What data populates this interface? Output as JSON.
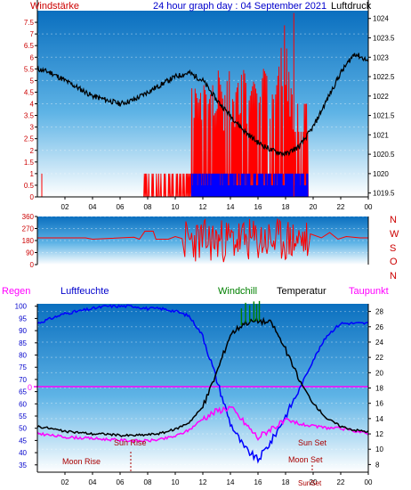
{
  "header": {
    "left_label": "Windstärke",
    "title": "24 hour graph day : 04 September 2021",
    "right_label": "Luftdruck"
  },
  "colors": {
    "wind": "#ff0000",
    "gust": "#0000ff",
    "pressure": "#000000",
    "humidity": "#0000ff",
    "windchill": "#008000",
    "temperature": "#000000",
    "dewpoint": "#ff00ff",
    "rain": "#ff00ff",
    "bg_top": "#0a6fbf",
    "bg_bottom": "#ffffff",
    "label_red": "#cc0000",
    "label_blue": "#0000cc"
  },
  "chart_data": [
    {
      "type": "line",
      "title": "24 hour graph day : 04 September 2021",
      "left_axis_label": "Windstärke",
      "right_axis_label": "Luftdruck",
      "x_ticks": [
        "02",
        "04",
        "06",
        "08",
        "10",
        "12",
        "14",
        "16",
        "18",
        "20",
        "22",
        "00"
      ],
      "left_ticks": [
        "0",
        "0.5",
        "1",
        "1.5",
        "2",
        "2.5",
        "3",
        "3.5",
        "4",
        "4.5",
        "5",
        "5.5",
        "6",
        "6.5",
        "7",
        "7.5"
      ],
      "right_ticks": [
        "1019.5",
        "1020",
        "1020.5",
        "1021",
        "1021.5",
        "1022",
        "1022.5",
        "1023",
        "1023.5",
        "1024"
      ],
      "ylim_left": [
        0,
        8
      ],
      "ylim_right": [
        1019.4,
        1024.2
      ],
      "grid": true,
      "series": [
        {
          "name": "Luftdruck",
          "axis": "right",
          "x": [
            0,
            1,
            2,
            3,
            4,
            5,
            6,
            7,
            8,
            9,
            10,
            11,
            12,
            13,
            14,
            15,
            16,
            17,
            18,
            19,
            20,
            21,
            22,
            23,
            24
          ],
          "values": [
            1022.7,
            1022.6,
            1022.4,
            1022.2,
            1022.0,
            1021.9,
            1021.8,
            1021.9,
            1022.1,
            1022.3,
            1022.5,
            1022.6,
            1022.4,
            1021.9,
            1021.5,
            1021.1,
            1020.8,
            1020.6,
            1020.5,
            1020.7,
            1021.2,
            1021.9,
            1022.6,
            1023.1,
            1022.9
          ]
        },
        {
          "name": "Windstärke",
          "axis": "left",
          "x": [
            11.0,
            11.3,
            11.7,
            12.0,
            12.4,
            12.8,
            13.1,
            13.5,
            13.9,
            14.2,
            14.6,
            15.0,
            15.3,
            15.7,
            16.1,
            16.4,
            16.8,
            17.2,
            17.5,
            17.9,
            18.3,
            18.6,
            19.0
          ],
          "values": [
            4,
            5,
            4,
            5,
            4,
            5,
            5.5,
            4,
            5.5,
            4,
            5,
            5.5,
            4,
            5,
            4,
            5.5,
            5,
            4,
            5.5,
            7.5,
            5,
            4,
            4
          ]
        }
      ]
    },
    {
      "type": "scatter",
      "direction_ticks": [
        "0",
        "90",
        "180",
        "270",
        "360"
      ],
      "direction_labels": [
        "N",
        "W",
        "S",
        "O",
        "N"
      ],
      "ylim": [
        0,
        360
      ]
    },
    {
      "type": "line",
      "left_axis_label": "Regen",
      "series_labels": [
        "Luftfeuchte",
        "Windchill",
        "Temperatur",
        "Taupunkt"
      ],
      "left_ticks": [
        "35",
        "40",
        "45",
        "50",
        "55",
        "60",
        "65",
        "70",
        "75",
        "80",
        "85",
        "90",
        "95",
        "100"
      ],
      "right_ticks": [
        "8",
        "10",
        "12",
        "14",
        "16",
        "18",
        "20",
        "22",
        "24",
        "26",
        "28"
      ],
      "x_ticks": [
        "02",
        "04",
        "06",
        "08",
        "10",
        "12",
        "14",
        "16",
        "18",
        "20",
        "22",
        "00"
      ],
      "rain_value": "0",
      "annotations": [
        "Moon Rise",
        "Sun Rise",
        "Sun Set",
        "Moon Set",
        "SunSet"
      ],
      "ylim_left": [
        32,
        101
      ],
      "ylim_right": [
        7,
        29
      ],
      "series": [
        {
          "name": "Luftfeuchte",
          "axis": "left",
          "x": [
            0,
            1,
            2,
            3,
            4,
            5,
            6,
            7,
            8,
            9,
            10,
            11,
            12,
            13,
            14,
            15,
            16,
            17,
            18,
            19,
            20,
            21,
            22,
            23,
            24
          ],
          "values": [
            93,
            95,
            97,
            98,
            99,
            100,
            100,
            100,
            99,
            99,
            98,
            96,
            88,
            70,
            52,
            42,
            37,
            45,
            55,
            66,
            78,
            88,
            93,
            93,
            93
          ]
        },
        {
          "name": "Temperatur",
          "axis": "right",
          "x": [
            0,
            1,
            2,
            3,
            4,
            5,
            6,
            7,
            8,
            9,
            10,
            11,
            12,
            13,
            14,
            15,
            16,
            17,
            18,
            19,
            20,
            21,
            22,
            23,
            24
          ],
          "values": [
            13,
            12.7,
            12.3,
            12.2,
            12,
            12,
            11.8,
            11.8,
            11.9,
            12.1,
            12.6,
            13.5,
            15.5,
            20,
            25,
            26.5,
            26.8,
            26.5,
            23,
            19,
            16,
            14,
            13,
            12.5,
            12.3
          ]
        },
        {
          "name": "Taupunkt",
          "axis": "right",
          "x": [
            0,
            1,
            2,
            3,
            4,
            5,
            6,
            7,
            8,
            9,
            10,
            11,
            12,
            13,
            14,
            15,
            16,
            17,
            18,
            19,
            20,
            21,
            22,
            23,
            24
          ],
          "values": [
            12.1,
            11.8,
            11.6,
            11.5,
            11.4,
            11.3,
            11.2,
            11.1,
            11.1,
            11.3,
            11.7,
            12.5,
            14,
            15,
            15.5,
            13.5,
            11.5,
            12.8,
            13.6,
            13.3,
            13,
            12.8,
            12.7,
            12.4,
            12
          ]
        }
      ]
    }
  ]
}
